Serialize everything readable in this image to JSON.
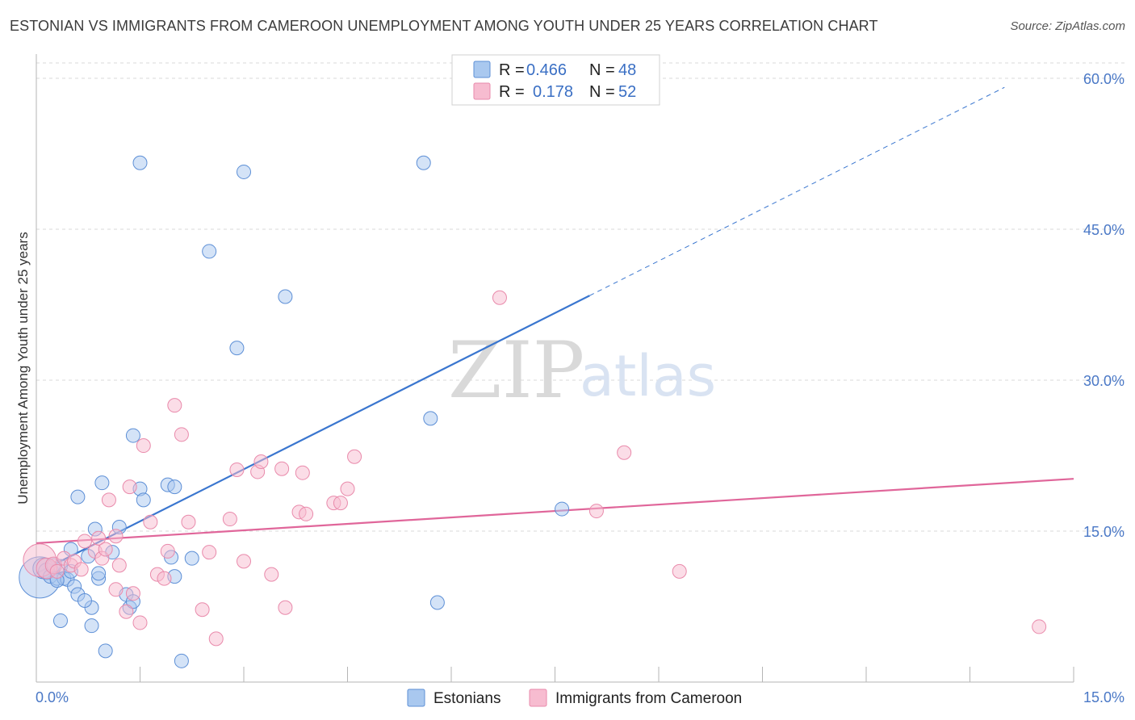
{
  "title": "ESTONIAN VS IMMIGRANTS FROM CAMEROON UNEMPLOYMENT AMONG YOUTH UNDER 25 YEARS CORRELATION CHART",
  "source": "Source: ZipAtlas.com",
  "watermark": {
    "zip": "ZIP",
    "atlas": "atlas"
  },
  "legend": {
    "r_label": "R =",
    "n_label": "N =",
    "rows": [
      {
        "r": "0.466",
        "n": "48"
      },
      {
        "r": "0.178",
        "n": "52"
      }
    ]
  },
  "colors": {
    "blue_fill": "#a9c8ef",
    "blue_stroke": "#5d8fd6",
    "blue_line": "#3a76cf",
    "pink_fill": "#f7bcd0",
    "pink_stroke": "#e98aab",
    "pink_line": "#e0669a",
    "grid": "#d9d9d9",
    "axis_text": "#4a78c6"
  },
  "chart_data": {
    "type": "scatter",
    "title": "ESTONIAN VS IMMIGRANTS FROM CAMEROON UNEMPLOYMENT AMONG YOUTH UNDER 25 YEARS CORRELATION CHART",
    "xlabel": "",
    "ylabel": "Unemployment Among Youth under 25 years",
    "xlim": [
      0,
      15
    ],
    "ylim": [
      0,
      60
    ],
    "x_tick_labels": [
      "0.0%",
      "15.0%"
    ],
    "y_ticks": [
      15,
      30,
      45,
      60
    ],
    "y_tick_labels": [
      "15.0%",
      "30.0%",
      "45.0%",
      "60.0%"
    ],
    "series": [
      {
        "name": "Estonians",
        "color": "blue",
        "r": 0.466,
        "n": 48,
        "trend": {
          "x0": 0,
          "y0": 10.8,
          "x1": 8.0,
          "y1": 38.4,
          "dash_to_x": 14.0,
          "dash_to_y": 59.1
        },
        "points": [
          [
            0.05,
            10.4,
            3
          ],
          [
            0.1,
            11.3,
            1.5
          ],
          [
            0.15,
            11.0,
            1.2
          ],
          [
            0.2,
            10.5,
            1
          ],
          [
            0.3,
            10.3,
            1
          ],
          [
            0.35,
            11.5,
            1
          ],
          [
            0.4,
            10.3,
            1
          ],
          [
            0.45,
            10.2,
            1
          ],
          [
            0.5,
            11.0,
            1
          ],
          [
            0.5,
            13.2,
            1
          ],
          [
            0.55,
            9.5,
            1
          ],
          [
            0.6,
            8.7,
            1
          ],
          [
            0.35,
            6.1,
            1
          ],
          [
            0.75,
            12.5,
            1
          ],
          [
            0.8,
            7.4,
            1
          ],
          [
            0.85,
            15.2,
            1
          ],
          [
            0.9,
            10.3,
            1
          ],
          [
            0.95,
            19.8,
            1
          ],
          [
            0.6,
            18.4,
            1
          ],
          [
            0.7,
            8.1,
            1
          ],
          [
            1.1,
            12.9,
            1
          ],
          [
            1.2,
            15.4,
            1
          ],
          [
            1.3,
            8.7,
            1
          ],
          [
            1.35,
            7.4,
            1
          ],
          [
            1.4,
            24.5,
            1
          ],
          [
            1.5,
            19.2,
            1
          ],
          [
            1.55,
            18.1,
            1
          ],
          [
            1.9,
            19.6,
            1
          ],
          [
            2.0,
            19.4,
            1
          ],
          [
            1.95,
            12.4,
            1
          ],
          [
            2.0,
            10.5,
            1
          ],
          [
            2.25,
            12.3,
            1
          ],
          [
            0.8,
            5.6,
            1
          ],
          [
            1.0,
            3.1,
            1
          ],
          [
            2.1,
            2.1,
            1
          ],
          [
            1.5,
            51.6,
            1
          ],
          [
            3.0,
            50.7,
            1
          ],
          [
            2.5,
            42.8,
            1
          ],
          [
            3.6,
            38.3,
            1
          ],
          [
            2.9,
            33.2,
            1
          ],
          [
            5.6,
            51.6,
            1
          ],
          [
            5.7,
            26.2,
            1
          ],
          [
            5.8,
            7.9,
            1
          ],
          [
            7.6,
            17.2,
            1
          ],
          [
            0.3,
            10.1,
            1
          ],
          [
            1.4,
            8.0,
            1
          ],
          [
            0.9,
            10.8,
            1
          ],
          [
            0.25,
            11.6,
            1
          ]
        ]
      },
      {
        "name": "Immigrants from Cameroon",
        "color": "pink",
        "r": 0.178,
        "n": 52,
        "trend": {
          "x0": 0,
          "y0": 13.8,
          "x1": 15.0,
          "y1": 20.2
        },
        "points": [
          [
            0.05,
            12.1,
            2.4
          ],
          [
            0.15,
            11.3,
            1.5
          ],
          [
            0.25,
            11.6,
            1.2
          ],
          [
            0.3,
            11.0,
            1
          ],
          [
            0.4,
            12.3,
            1
          ],
          [
            0.5,
            11.6,
            1
          ],
          [
            0.55,
            12.0,
            1
          ],
          [
            0.65,
            11.2,
            1
          ],
          [
            0.7,
            14.0,
            1
          ],
          [
            0.85,
            13.0,
            1
          ],
          [
            0.9,
            14.3,
            1
          ],
          [
            0.95,
            12.3,
            1
          ],
          [
            1.05,
            18.1,
            1
          ],
          [
            1.15,
            14.5,
            1
          ],
          [
            1.2,
            11.6,
            1
          ],
          [
            1.15,
            9.2,
            1
          ],
          [
            1.3,
            7.0,
            1
          ],
          [
            1.4,
            8.8,
            1
          ],
          [
            1.5,
            5.9,
            1
          ],
          [
            1.35,
            19.4,
            1
          ],
          [
            1.55,
            23.5,
            1
          ],
          [
            1.65,
            15.9,
            1
          ],
          [
            1.75,
            10.7,
            1
          ],
          [
            1.85,
            10.3,
            1
          ],
          [
            1.9,
            13.0,
            1
          ],
          [
            2.0,
            27.5,
            1
          ],
          [
            2.1,
            24.6,
            1
          ],
          [
            2.2,
            15.9,
            1
          ],
          [
            2.4,
            7.2,
            1
          ],
          [
            2.5,
            12.9,
            1
          ],
          [
            2.6,
            4.3,
            1
          ],
          [
            2.8,
            16.2,
            1
          ],
          [
            2.9,
            21.1,
            1
          ],
          [
            3.0,
            12.0,
            1
          ],
          [
            3.2,
            20.9,
            1
          ],
          [
            3.25,
            21.9,
            1
          ],
          [
            3.4,
            10.7,
            1
          ],
          [
            3.55,
            21.2,
            1
          ],
          [
            3.6,
            7.4,
            1
          ],
          [
            3.8,
            16.9,
            1
          ],
          [
            3.85,
            20.8,
            1
          ],
          [
            3.9,
            16.7,
            1
          ],
          [
            4.3,
            17.8,
            1
          ],
          [
            4.4,
            17.8,
            1
          ],
          [
            4.5,
            19.2,
            1
          ],
          [
            4.6,
            22.4,
            1
          ],
          [
            6.7,
            38.2,
            1
          ],
          [
            8.1,
            17.0,
            1
          ],
          [
            8.5,
            22.8,
            1
          ],
          [
            9.3,
            11.0,
            1
          ],
          [
            14.5,
            5.5,
            1
          ],
          [
            1.0,
            13.2,
            1
          ]
        ]
      }
    ]
  }
}
